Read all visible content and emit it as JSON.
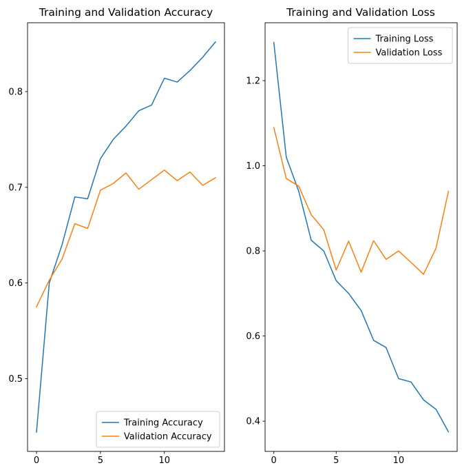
{
  "figure": {
    "background": "#ffffff"
  },
  "chart_data": [
    {
      "type": "line",
      "title": "Training and Validation Accuracy",
      "xlabel": "",
      "ylabel": "",
      "x": [
        0,
        1,
        2,
        3,
        4,
        5,
        6,
        7,
        8,
        9,
        10,
        11,
        12,
        13,
        14
      ],
      "xticks": [
        0,
        5,
        10
      ],
      "yticks": [
        0.5,
        0.6,
        0.7,
        0.8
      ],
      "xlim": [
        -0.7,
        14.7
      ],
      "ylim": [
        0.424,
        0.872
      ],
      "grid": false,
      "legend_position": "lower right",
      "series": [
        {
          "name": "Training Accuracy",
          "color": "#1f77b4",
          "values": [
            0.444,
            0.6,
            0.64,
            0.69,
            0.688,
            0.73,
            0.75,
            0.764,
            0.78,
            0.786,
            0.814,
            0.81,
            0.822,
            0.836,
            0.852
          ]
        },
        {
          "name": "Validation Accuracy",
          "color": "#ff7f0e",
          "values": [
            0.575,
            0.603,
            0.625,
            0.662,
            0.657,
            0.697,
            0.704,
            0.715,
            0.698,
            0.708,
            0.718,
            0.707,
            0.716,
            0.702,
            0.71
          ]
        }
      ]
    },
    {
      "type": "line",
      "title": "Training and Validation Loss",
      "xlabel": "",
      "ylabel": "",
      "x": [
        0,
        1,
        2,
        3,
        4,
        5,
        6,
        7,
        8,
        9,
        10,
        11,
        12,
        13,
        14
      ],
      "xticks": [
        0,
        5,
        10
      ],
      "yticks": [
        0.4,
        0.6,
        0.8,
        1.0,
        1.2
      ],
      "xlim": [
        -0.7,
        14.7
      ],
      "ylim": [
        0.329,
        1.336
      ],
      "grid": false,
      "legend_position": "upper right",
      "series": [
        {
          "name": "Training Loss",
          "color": "#1f77b4",
          "values": [
            1.29,
            1.02,
            0.94,
            0.825,
            0.8,
            0.73,
            0.7,
            0.66,
            0.59,
            0.573,
            0.5,
            0.492,
            0.45,
            0.428,
            0.375
          ]
        },
        {
          "name": "Validation Loss",
          "color": "#ff7f0e",
          "values": [
            1.09,
            0.97,
            0.952,
            0.885,
            0.85,
            0.755,
            0.823,
            0.75,
            0.824,
            0.78,
            0.8,
            0.773,
            0.745,
            0.806,
            0.94
          ]
        }
      ]
    }
  ]
}
